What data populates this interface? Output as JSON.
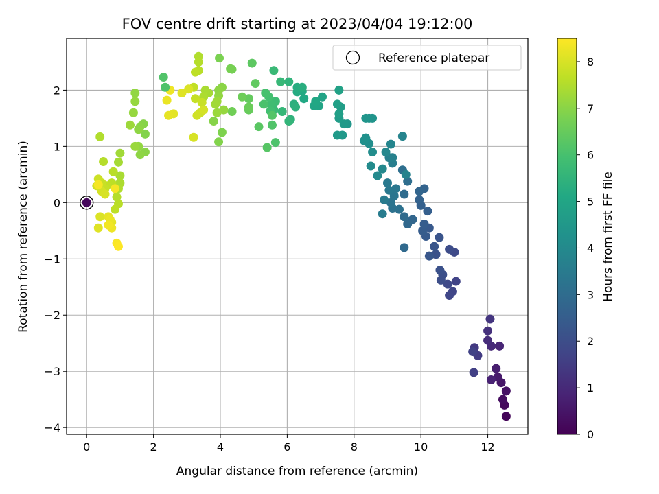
{
  "chart_data": {
    "type": "scatter",
    "title": "FOV centre drift starting at 2023/04/04 19:12:00",
    "xlabel": "Angular distance from reference (arcmin)",
    "ylabel": "Rotation from reference (arcmin)",
    "xlim": [
      -0.6,
      13.2
    ],
    "ylim": [
      -4.12,
      2.92
    ],
    "xticks": [
      0,
      2,
      4,
      6,
      8,
      10,
      12
    ],
    "yticks": [
      -4,
      -3,
      -2,
      -1,
      0,
      1,
      2
    ],
    "x_tick_labels": [
      "0",
      "2",
      "4",
      "6",
      "8",
      "10",
      "12"
    ],
    "y_tick_labels": [
      "−4",
      "−3",
      "−2",
      "−1",
      "0",
      "1",
      "2"
    ],
    "grid": true,
    "legend": {
      "placement": "top-right",
      "label": "Reference platepar"
    },
    "reference_point": {
      "x": 0,
      "y": 0
    },
    "colorbar": {
      "label": "Hours from first FF file",
      "min": 0,
      "max": 8.5,
      "ticks": [
        0,
        1,
        2,
        3,
        4,
        5,
        6,
        7,
        8
      ],
      "tick_labels": [
        "0",
        "1",
        "2",
        "3",
        "4",
        "5",
        "6",
        "7",
        "8"
      ],
      "colormap": "viridis"
    },
    "series": [
      {
        "points": [
          [
            12.55,
            -3.8,
            0.1
          ],
          [
            12.5,
            -3.6,
            0.2
          ],
          [
            12.45,
            -3.5,
            0.3
          ],
          [
            12.55,
            -3.35,
            0.4
          ],
          [
            12.4,
            -3.2,
            0.5
          ],
          [
            12.3,
            -3.1,
            0.6
          ],
          [
            12.25,
            -2.95,
            0.7
          ],
          [
            12.1,
            -3.15,
            0.8
          ],
          [
            12.35,
            -2.55,
            0.9
          ],
          [
            12.1,
            -2.55,
            1.0
          ],
          [
            12.0,
            -2.45,
            1.1
          ],
          [
            12.0,
            -2.28,
            1.2
          ],
          [
            12.07,
            -2.07,
            1.3
          ],
          [
            11.6,
            -2.58,
            1.4
          ],
          [
            11.7,
            -2.72,
            1.5
          ],
          [
            11.58,
            -3.02,
            1.6
          ],
          [
            11.55,
            -2.65,
            1.65
          ],
          [
            11.05,
            -1.4,
            1.7
          ],
          [
            10.95,
            -1.58,
            1.75
          ],
          [
            10.85,
            -1.65,
            1.8
          ],
          [
            10.8,
            -1.45,
            1.85
          ],
          [
            11.0,
            -0.88,
            1.9
          ],
          [
            10.85,
            -0.83,
            1.95
          ],
          [
            10.6,
            -1.38,
            2.0
          ],
          [
            10.65,
            -1.28,
            2.05
          ],
          [
            10.57,
            -1.2,
            2.1
          ],
          [
            10.45,
            -0.92,
            2.15
          ],
          [
            10.55,
            -0.62,
            2.2
          ],
          [
            10.4,
            -0.78,
            2.25
          ],
          [
            10.25,
            -0.95,
            2.3
          ],
          [
            10.25,
            -0.45,
            2.35
          ],
          [
            10.15,
            -0.6,
            2.4
          ],
          [
            10.05,
            -0.5,
            2.45
          ],
          [
            10.1,
            -0.38,
            2.5
          ],
          [
            10.2,
            -0.15,
            2.55
          ],
          [
            10.0,
            -0.05,
            2.6
          ],
          [
            9.95,
            0.05,
            2.65
          ],
          [
            10.1,
            0.25,
            2.7
          ],
          [
            9.95,
            0.2,
            2.75
          ],
          [
            9.75,
            -0.3,
            2.8
          ],
          [
            9.6,
            -0.38,
            2.85
          ],
          [
            9.5,
            -0.8,
            2.9
          ],
          [
            9.5,
            -0.25,
            2.95
          ],
          [
            9.5,
            0.15,
            3.0
          ],
          [
            9.6,
            0.38,
            3.05
          ],
          [
            9.45,
            0.58,
            3.1
          ],
          [
            9.35,
            -0.12,
            3.15
          ],
          [
            9.15,
            -0.1,
            3.2
          ],
          [
            9.1,
            0.0,
            3.25
          ],
          [
            9.2,
            0.12,
            3.3
          ],
          [
            9.25,
            0.25,
            3.35
          ],
          [
            9.05,
            0.22,
            3.4
          ],
          [
            9.0,
            0.35,
            3.45
          ],
          [
            8.9,
            0.05,
            3.5
          ],
          [
            8.85,
            -0.2,
            3.55
          ],
          [
            9.15,
            0.7,
            3.6
          ],
          [
            9.05,
            0.8,
            3.65
          ],
          [
            9.15,
            0.8,
            3.7
          ],
          [
            9.55,
            0.5,
            3.75
          ],
          [
            9.45,
            1.18,
            3.8
          ],
          [
            9.1,
            1.04,
            3.85
          ],
          [
            8.95,
            0.9,
            3.9
          ],
          [
            8.85,
            0.6,
            3.95
          ],
          [
            8.7,
            0.48,
            4.0
          ],
          [
            8.5,
            0.65,
            4.05
          ],
          [
            8.55,
            0.9,
            4.1
          ],
          [
            8.45,
            1.05,
            4.15
          ],
          [
            8.3,
            1.1,
            4.2
          ],
          [
            8.35,
            1.15,
            4.25
          ],
          [
            8.45,
            1.5,
            4.3
          ],
          [
            8.55,
            1.5,
            4.35
          ],
          [
            8.35,
            1.5,
            4.4
          ],
          [
            7.8,
            1.4,
            4.45
          ],
          [
            7.65,
            1.2,
            4.5
          ],
          [
            7.7,
            1.4,
            4.55
          ],
          [
            7.5,
            1.2,
            4.6
          ],
          [
            7.55,
            1.5,
            4.65
          ],
          [
            7.6,
            1.7,
            4.7
          ],
          [
            7.55,
            1.58,
            4.75
          ],
          [
            7.5,
            1.75,
            4.8
          ],
          [
            7.55,
            2.0,
            4.85
          ],
          [
            7.05,
            1.88,
            4.9
          ],
          [
            6.95,
            1.72,
            4.95
          ],
          [
            6.8,
            1.72,
            5.0
          ],
          [
            6.85,
            1.8,
            5.05
          ],
          [
            6.5,
            1.85,
            5.1
          ],
          [
            6.45,
            1.98,
            5.15
          ],
          [
            6.3,
            1.97,
            5.2
          ],
          [
            6.3,
            2.05,
            5.25
          ],
          [
            6.45,
            2.05,
            5.3
          ],
          [
            6.2,
            1.75,
            5.35
          ],
          [
            6.25,
            1.7,
            5.4
          ],
          [
            6.1,
            1.48,
            5.45
          ],
          [
            6.05,
            2.15,
            5.5
          ],
          [
            6.05,
            1.45,
            5.55
          ],
          [
            5.85,
            1.62,
            5.6
          ],
          [
            5.8,
            2.15,
            5.65
          ],
          [
            5.6,
            2.35,
            5.7
          ],
          [
            5.6,
            1.65,
            5.75
          ],
          [
            5.65,
            1.8,
            5.8
          ],
          [
            5.5,
            1.75,
            5.85
          ],
          [
            5.5,
            1.63,
            5.9
          ],
          [
            5.45,
            1.88,
            5.95
          ],
          [
            5.35,
            1.95,
            6.0
          ],
          [
            5.3,
            1.75,
            6.05
          ],
          [
            5.65,
            1.07,
            6.1
          ],
          [
            5.55,
            1.38,
            6.15
          ],
          [
            5.55,
            1.55,
            6.2
          ],
          [
            5.4,
            0.98,
            6.25
          ],
          [
            5.15,
            1.35,
            6.3
          ],
          [
            4.95,
            2.48,
            6.35
          ],
          [
            5.05,
            2.12,
            6.4
          ],
          [
            4.85,
            1.85,
            6.45
          ],
          [
            4.85,
            1.65,
            6.5
          ],
          [
            4.85,
            1.7,
            6.55
          ],
          [
            4.65,
            1.88,
            6.6
          ],
          [
            4.35,
            1.62,
            6.65
          ],
          [
            4.35,
            2.37,
            6.7
          ],
          [
            4.3,
            2.38,
            6.75
          ],
          [
            3.97,
            2.57,
            6.8
          ],
          [
            4.05,
            1.25,
            6.85
          ],
          [
            3.95,
            1.08,
            6.9
          ],
          [
            3.8,
            1.45,
            6.95
          ],
          [
            4.05,
            2.05,
            7.0
          ],
          [
            3.95,
            2.0,
            7.05
          ],
          [
            3.95,
            1.9,
            7.1
          ],
          [
            4.1,
            1.65,
            7.15
          ],
          [
            3.9,
            1.6,
            7.2
          ],
          [
            3.9,
            1.8,
            7.25
          ],
          [
            3.85,
            1.75,
            7.3
          ],
          [
            3.65,
            1.95,
            7.35
          ],
          [
            3.55,
            2.0,
            7.4
          ],
          [
            3.5,
            1.88,
            7.45
          ],
          [
            3.35,
            2.6,
            7.5
          ],
          [
            3.35,
            2.5,
            7.55
          ],
          [
            3.35,
            2.35,
            7.6
          ],
          [
            3.25,
            2.32,
            7.65
          ],
          [
            3.2,
            2.05,
            7.7
          ],
          [
            3.25,
            1.85,
            7.75
          ],
          [
            3.45,
            1.78,
            7.8
          ],
          [
            3.4,
            1.6,
            7.85
          ],
          [
            3.3,
            1.55,
            7.9
          ],
          [
            3.5,
            1.65,
            7.95
          ],
          [
            3.2,
            1.16,
            8.0
          ],
          [
            3.05,
            2.02,
            8.05
          ],
          [
            2.85,
            1.95,
            8.1
          ],
          [
            2.6,
            1.58,
            8.15
          ],
          [
            2.45,
            1.55,
            8.2
          ],
          [
            2.4,
            1.82,
            8.25
          ],
          [
            2.5,
            2.0,
            8.3
          ]
        ]
      },
      {
        "points": [
          [
            2.35,
            2.05,
            6.1
          ],
          [
            2.3,
            2.23,
            6.15
          ],
          [
            1.75,
            1.22,
            6.9
          ],
          [
            1.75,
            0.9,
            7.0
          ],
          [
            1.7,
            1.4,
            6.95
          ],
          [
            1.6,
            1.35,
            7.0
          ],
          [
            1.6,
            0.85,
            7.05
          ],
          [
            1.55,
            1.3,
            7.05
          ],
          [
            1.55,
            1.0,
            7.1
          ],
          [
            1.45,
            1.95,
            7.1
          ],
          [
            1.45,
            1.8,
            7.15
          ],
          [
            1.4,
            1.6,
            7.15
          ],
          [
            1.45,
            1.0,
            7.2
          ],
          [
            1.3,
            1.38,
            7.25
          ],
          [
            1.0,
            0.88,
            7.3
          ],
          [
            0.95,
            0.72,
            7.35
          ],
          [
            1.0,
            0.48,
            7.4
          ],
          [
            1.0,
            0.35,
            7.45
          ],
          [
            0.95,
            0.25,
            7.5
          ],
          [
            0.9,
            0.1,
            7.55
          ],
          [
            0.95,
            -0.02,
            7.6
          ],
          [
            0.85,
            -0.12,
            7.65
          ],
          [
            0.4,
            1.17,
            7.5
          ],
          [
            0.5,
            0.73,
            7.55
          ],
          [
            0.8,
            0.55,
            7.6
          ],
          [
            0.75,
            0.35,
            7.65
          ],
          [
            0.6,
            0.3,
            7.7
          ],
          [
            0.55,
            0.25,
            7.75
          ],
          [
            0.45,
            0.35,
            7.8
          ],
          [
            0.35,
            0.42,
            7.85
          ],
          [
            0.3,
            0.3,
            7.9
          ],
          [
            0.45,
            0.2,
            7.95
          ],
          [
            0.55,
            0.15,
            8.0
          ],
          [
            0.4,
            -0.25,
            8.05
          ],
          [
            0.35,
            -0.45,
            8.1
          ],
          [
            0.75,
            -0.35,
            8.15
          ],
          [
            0.65,
            -0.25,
            8.2
          ],
          [
            0.7,
            -0.3,
            8.25
          ],
          [
            0.75,
            -0.45,
            8.3
          ],
          [
            0.65,
            -0.4,
            8.35
          ],
          [
            0.85,
            0.25,
            8.4
          ],
          [
            0.9,
            -0.72,
            8.45
          ],
          [
            0.95,
            -0.78,
            8.5
          ],
          [
            0.35,
            0.32,
            8.4
          ]
        ]
      }
    ]
  }
}
